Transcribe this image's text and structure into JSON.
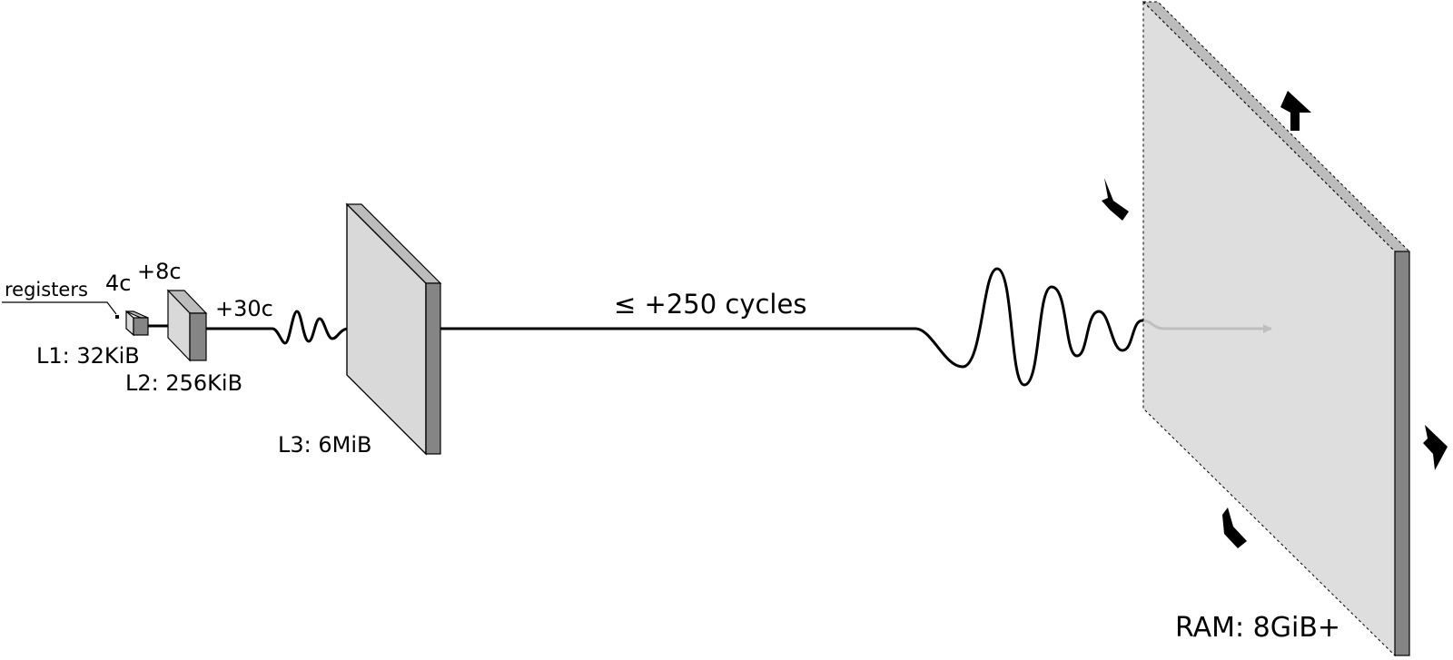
{
  "labels": {
    "registers": "registers",
    "l1_latency": "4c",
    "l2_latency": "+8c",
    "l3_latency": "+30c",
    "ram_latency": "≤ +250 cycles",
    "l1": "L1: 32KiB",
    "l2": "L2: 256KiB",
    "l3": "L3: 6MiB",
    "ram": "RAM: 8GiB+"
  },
  "colors": {
    "face": "#d9d9d9",
    "top": "#bcbcbc",
    "side": "#858585",
    "stroke": "#000000"
  }
}
